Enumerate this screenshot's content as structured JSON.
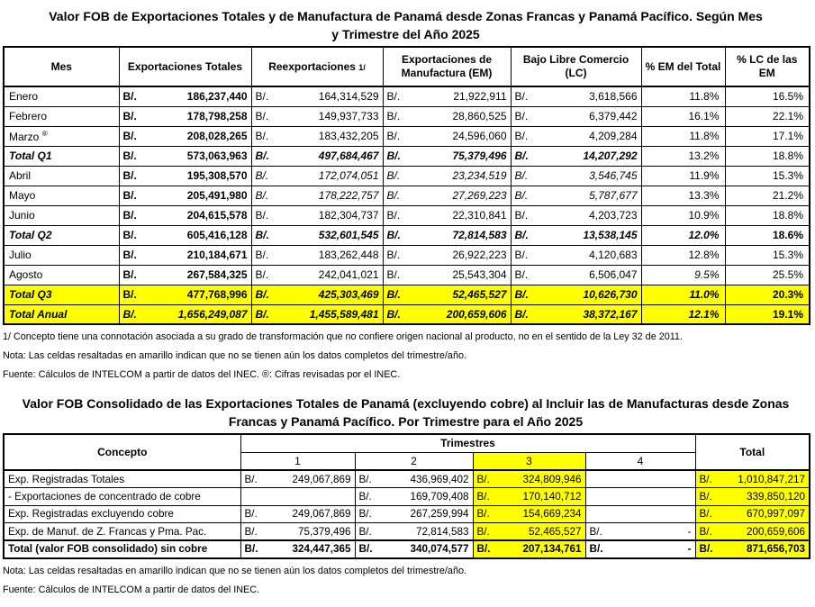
{
  "document": {
    "highlight_color": "#ffff00",
    "currency_prefix": "B/."
  },
  "table1": {
    "title_line1": "Valor FOB de Exportaciones Totales y de Manufactura de Panamá desde Zonas Francas y Panamá Pacífico. Según Mes",
    "title_line2": "y Trimestre del Año 2025",
    "headers": {
      "mes": "Mes",
      "exportaciones_totales": "Exportaciones Totales",
      "reexportaciones": "Reexportaciones",
      "reexportaciones_note": "1/",
      "exportaciones_manufactura": "Exportaciones de Manufactura (EM)",
      "bajo_libre_comercio": "Bajo Libre Comercio (LC)",
      "pct_em_total": "% EM del Total",
      "pct_lc_em": "% LC de las EM"
    },
    "rows": [
      {
        "label": "Enero",
        "label_style": "",
        "highlight": false,
        "cells": [
          {
            "prefix": "B/.",
            "value": "186,237,440",
            "style": "b"
          },
          {
            "prefix": "B/.",
            "value": "164,314,529",
            "style": ""
          },
          {
            "prefix": "B/.",
            "value": "21,922,911",
            "style": ""
          },
          {
            "prefix": "B/.",
            "value": "3,618,566",
            "style": ""
          },
          {
            "value": "11.8%",
            "style": ""
          },
          {
            "value": "16.5%",
            "style": ""
          }
        ]
      },
      {
        "label": "Febrero",
        "label_style": "",
        "highlight": false,
        "cells": [
          {
            "prefix": "B/.",
            "value": "178,798,258",
            "style": "b"
          },
          {
            "prefix": "B/.",
            "value": "149,937,733",
            "style": ""
          },
          {
            "prefix": "B/.",
            "value": "28,860,525",
            "style": ""
          },
          {
            "prefix": "B/.",
            "value": "6,379,442",
            "style": ""
          },
          {
            "value": "16.1%",
            "style": ""
          },
          {
            "value": "22.1%",
            "style": ""
          }
        ]
      },
      {
        "label": "Marzo",
        "sup": "®",
        "label_style": "",
        "highlight": false,
        "cells": [
          {
            "prefix": "B/.",
            "value": "208,028,265",
            "style": "b"
          },
          {
            "prefix": "B/.",
            "value": "183,432,205",
            "style": ""
          },
          {
            "prefix": "B/.",
            "value": "24,596,060",
            "style": ""
          },
          {
            "prefix": "B/.",
            "value": "4,209,284",
            "style": ""
          },
          {
            "value": "11.8%",
            "style": ""
          },
          {
            "value": "17.1%",
            "style": ""
          }
        ]
      },
      {
        "label": "Total Q1",
        "label_style": "bi",
        "highlight": false,
        "cells": [
          {
            "prefix": "B/.",
            "value": "573,063,963",
            "style": "b"
          },
          {
            "prefix": "B/.",
            "value": "497,684,467",
            "style": "bi"
          },
          {
            "prefix": "B/.",
            "value": "75,379,496",
            "style": "bi"
          },
          {
            "prefix": "B/.",
            "value": "14,207,292",
            "style": "bi"
          },
          {
            "value": "13.2%",
            "style": ""
          },
          {
            "value": "18.8%",
            "style": ""
          }
        ]
      },
      {
        "label": "Abril",
        "label_style": "",
        "highlight": false,
        "cells": [
          {
            "prefix": "B/.",
            "value": "195,308,570",
            "style": "b"
          },
          {
            "prefix": "B/.",
            "value": "172,074,051",
            "style": "i"
          },
          {
            "prefix": "B/.",
            "value": "23,234,519",
            "style": "i"
          },
          {
            "prefix": "B/.",
            "value": "3,546,745",
            "style": "i"
          },
          {
            "value": "11.9%",
            "style": ""
          },
          {
            "value": "15.3%",
            "style": ""
          }
        ]
      },
      {
        "label": "Mayo",
        "label_style": "",
        "highlight": false,
        "cells": [
          {
            "prefix": "B/.",
            "value": "205,491,980",
            "style": "b"
          },
          {
            "prefix": "B/.",
            "value": "178,222,757",
            "style": "i"
          },
          {
            "prefix": "B/.",
            "value": "27,269,223",
            "style": "i"
          },
          {
            "prefix": "B/.",
            "value": "5,787,677",
            "style": "i"
          },
          {
            "value": "13.3%",
            "style": ""
          },
          {
            "value": "21.2%",
            "style": ""
          }
        ]
      },
      {
        "label": "Junio",
        "label_style": "",
        "highlight": false,
        "cells": [
          {
            "prefix": "B/.",
            "value": "204,615,578",
            "style": "b"
          },
          {
            "prefix": "B/.",
            "value": "182,304,737",
            "style": ""
          },
          {
            "prefix": "B/.",
            "value": "22,310,841",
            "style": ""
          },
          {
            "prefix": "B/.",
            "value": "4,203,723",
            "style": ""
          },
          {
            "value": "10.9%",
            "style": ""
          },
          {
            "value": "18.8%",
            "style": ""
          }
        ]
      },
      {
        "label": "Total Q2",
        "label_style": "bi",
        "highlight": false,
        "cells": [
          {
            "prefix": "B/.",
            "value": "605,416,128",
            "style": "b"
          },
          {
            "prefix": "B/.",
            "value": "532,601,545",
            "style": "bi"
          },
          {
            "prefix": "B/.",
            "value": "72,814,583",
            "style": "bi"
          },
          {
            "prefix": "B/.",
            "value": "13,538,145",
            "style": "bi"
          },
          {
            "value": "12.0%",
            "style": "bi"
          },
          {
            "value": "18.6%",
            "style": "b"
          }
        ]
      },
      {
        "label": "Julio",
        "label_style": "",
        "highlight": false,
        "cells": [
          {
            "prefix": "B/.",
            "value": "210,184,671",
            "style": "b"
          },
          {
            "prefix": "B/.",
            "value": "183,262,448",
            "style": ""
          },
          {
            "prefix": "B/.",
            "value": "26,922,223",
            "style": ""
          },
          {
            "prefix": "B/.",
            "value": "4,120,683",
            "style": ""
          },
          {
            "value": "12.8%",
            "style": ""
          },
          {
            "value": "15.3%",
            "style": ""
          }
        ]
      },
      {
        "label": "Agosto",
        "label_style": "",
        "highlight": false,
        "cells": [
          {
            "prefix": "B/.",
            "value": "267,584,325",
            "style": "b"
          },
          {
            "prefix": "B/.",
            "value": "242,041,021",
            "style": ""
          },
          {
            "prefix": "B/.",
            "value": "25,543,304",
            "style": ""
          },
          {
            "prefix": "B/.",
            "value": "6,506,047",
            "style": ""
          },
          {
            "value": "9.5%",
            "style": "i"
          },
          {
            "value": "25.5%",
            "style": ""
          }
        ]
      },
      {
        "label": "Total Q3",
        "label_style": "bi",
        "highlight": true,
        "cells": [
          {
            "prefix": "B/.",
            "value": "477,768,996",
            "style": "b"
          },
          {
            "prefix": "B/.",
            "value": "425,303,469",
            "style": "bi"
          },
          {
            "prefix": "B/.",
            "value": "52,465,527",
            "style": "bi"
          },
          {
            "prefix": "B/.",
            "value": "10,626,730",
            "style": "bi"
          },
          {
            "value": "11.0%",
            "style": "bi"
          },
          {
            "value": "20.3%",
            "style": "b"
          }
        ]
      },
      {
        "label": "Total Anual",
        "label_style": "bi",
        "highlight": true,
        "cells": [
          {
            "prefix": "B/.",
            "value": "1,656,249,087",
            "style": "bi"
          },
          {
            "prefix": "B/.",
            "value": "1,455,589,481",
            "style": "bi"
          },
          {
            "prefix": "B/.",
            "value": "200,659,606",
            "style": "bi"
          },
          {
            "prefix": "B/.",
            "value": "38,372,167",
            "style": "bi"
          },
          {
            "value": "12.1%",
            "style": "bi"
          },
          {
            "value": "19.1%",
            "style": "b"
          }
        ]
      }
    ],
    "notes": [
      "1/ Concepto tiene una connotación asociada a su grado de transformación que no confiere origen nacional al producto, no en el sentido de la Ley 32 de 2011.",
      "Nota: Las celdas resaltadas en amarillo indican que no se tienen aún los datos completos del trimestre/año.",
      "Fuente: Cálculos de INTELCOM a partir de datos del INEC. ®: Cifras revisadas por el INEC."
    ]
  },
  "table2": {
    "title_line1": "Valor FOB Consolidado de las Exportaciones Totales de Panamá (excluyendo cobre) al Incluir las de Manufacturas desde Zonas",
    "title_line2": "Francas y Panamá Pacífico. Por Trimestre para el Año 2025",
    "headers": {
      "concepto": "Concepto",
      "trimestres": "Trimestres",
      "q1": "1",
      "q2": "2",
      "q3": "3",
      "q4": "4",
      "total": "Total"
    },
    "rows": [
      {
        "label": "Exp. Registradas Totales",
        "total_row": false,
        "cells": [
          {
            "prefix": "B/.",
            "value": "249,067,869"
          },
          {
            "prefix": "B/.",
            "value": "436,969,402"
          },
          {
            "prefix": "B/.",
            "value": "324,809,946",
            "yellow": true
          },
          {},
          {
            "prefix": "B/.",
            "value": "1,010,847,217",
            "yellow": true
          }
        ]
      },
      {
        "label": "- Exportaciones de concentrado de cobre",
        "total_row": false,
        "cells": [
          {},
          {
            "prefix": "B/.",
            "value": "169,709,408"
          },
          {
            "prefix": "B/.",
            "value": "170,140,712",
            "yellow": true
          },
          {},
          {
            "prefix": "B/.",
            "value": "339,850,120",
            "yellow": true
          }
        ]
      },
      {
        "label": "Exp. Registradas excluyendo cobre",
        "total_row": false,
        "cells": [
          {
            "prefix": "B/.",
            "value": "249,067,869"
          },
          {
            "prefix": "B/.",
            "value": "267,259,994"
          },
          {
            "prefix": "B/.",
            "value": "154,669,234",
            "yellow": true
          },
          {},
          {
            "prefix": "B/.",
            "value": "670,997,097",
            "yellow": true
          }
        ]
      },
      {
        "label": "Exp. de Manuf. de Z. Francas y Pma. Pac.",
        "total_row": false,
        "cells": [
          {
            "prefix": "B/.",
            "value": "75,379,496"
          },
          {
            "prefix": "B/.",
            "value": "72,814,583"
          },
          {
            "prefix": "B/.",
            "value": "52,465,527",
            "yellow": true
          },
          {
            "prefix": "B/.",
            "value": "-"
          },
          {
            "prefix": "B/.",
            "value": "200,659,606",
            "yellow": true
          }
        ]
      },
      {
        "label": "Total (valor FOB consolidado) sin cobre",
        "total_row": true,
        "cells": [
          {
            "prefix": "B/.",
            "value": "324,447,365"
          },
          {
            "prefix": "B/.",
            "value": "340,074,577"
          },
          {
            "prefix": "B/.",
            "value": "207,134,761",
            "yellow": true
          },
          {
            "prefix": "B/.",
            "value": "-"
          },
          {
            "prefix": "B/.",
            "value": "871,656,703",
            "yellow": true
          }
        ]
      }
    ],
    "notes": [
      "Nota: Las celdas resaltadas en amarillo indican que no se tienen aún los datos completos del trimestre/año.",
      "Fuente: Cálculos de INTELCOM a partir de datos del INEC."
    ]
  }
}
